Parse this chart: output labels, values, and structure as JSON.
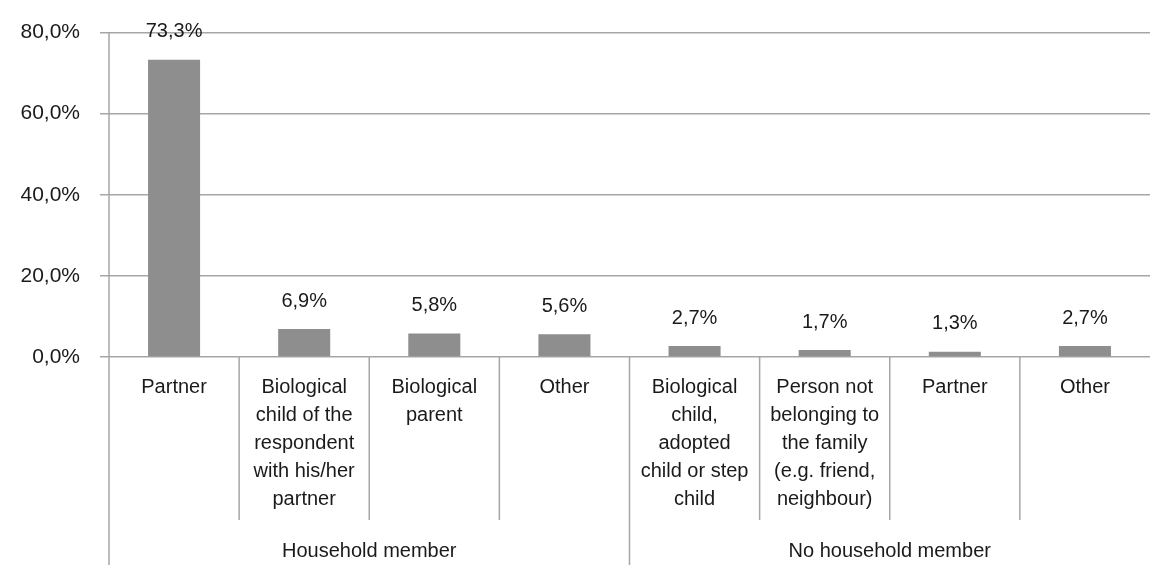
{
  "chart_data": {
    "type": "bar",
    "categories": [
      "Partner",
      "Biological child of the respondent with his/her partner",
      "Biological parent",
      "Other",
      "Biological child, adopted child or step child",
      "Person not belonging to the family (e.g. friend, neighbour)",
      "Partner",
      "Other"
    ],
    "values": [
      73.3,
      6.9,
      5.8,
      5.6,
      2.7,
      1.7,
      1.3,
      2.7
    ],
    "value_labels": [
      "73,3%",
      "6,9%",
      "5,8%",
      "5,6%",
      "2,7%",
      "1,7%",
      "1,3%",
      "2,7%"
    ],
    "color": "#8e8e8e",
    "ylim": [
      0,
      80
    ],
    "yticks": [
      {
        "value": 0,
        "label": "0,0%"
      },
      {
        "value": 20,
        "label": "20,0%"
      },
      {
        "value": 40,
        "label": "40,0%"
      },
      {
        "value": 60,
        "label": "60,0%"
      },
      {
        "value": 80,
        "label": "80,0%"
      }
    ],
    "grid": "y",
    "annotations": [
      "Household member",
      "No household member"
    ]
  }
}
